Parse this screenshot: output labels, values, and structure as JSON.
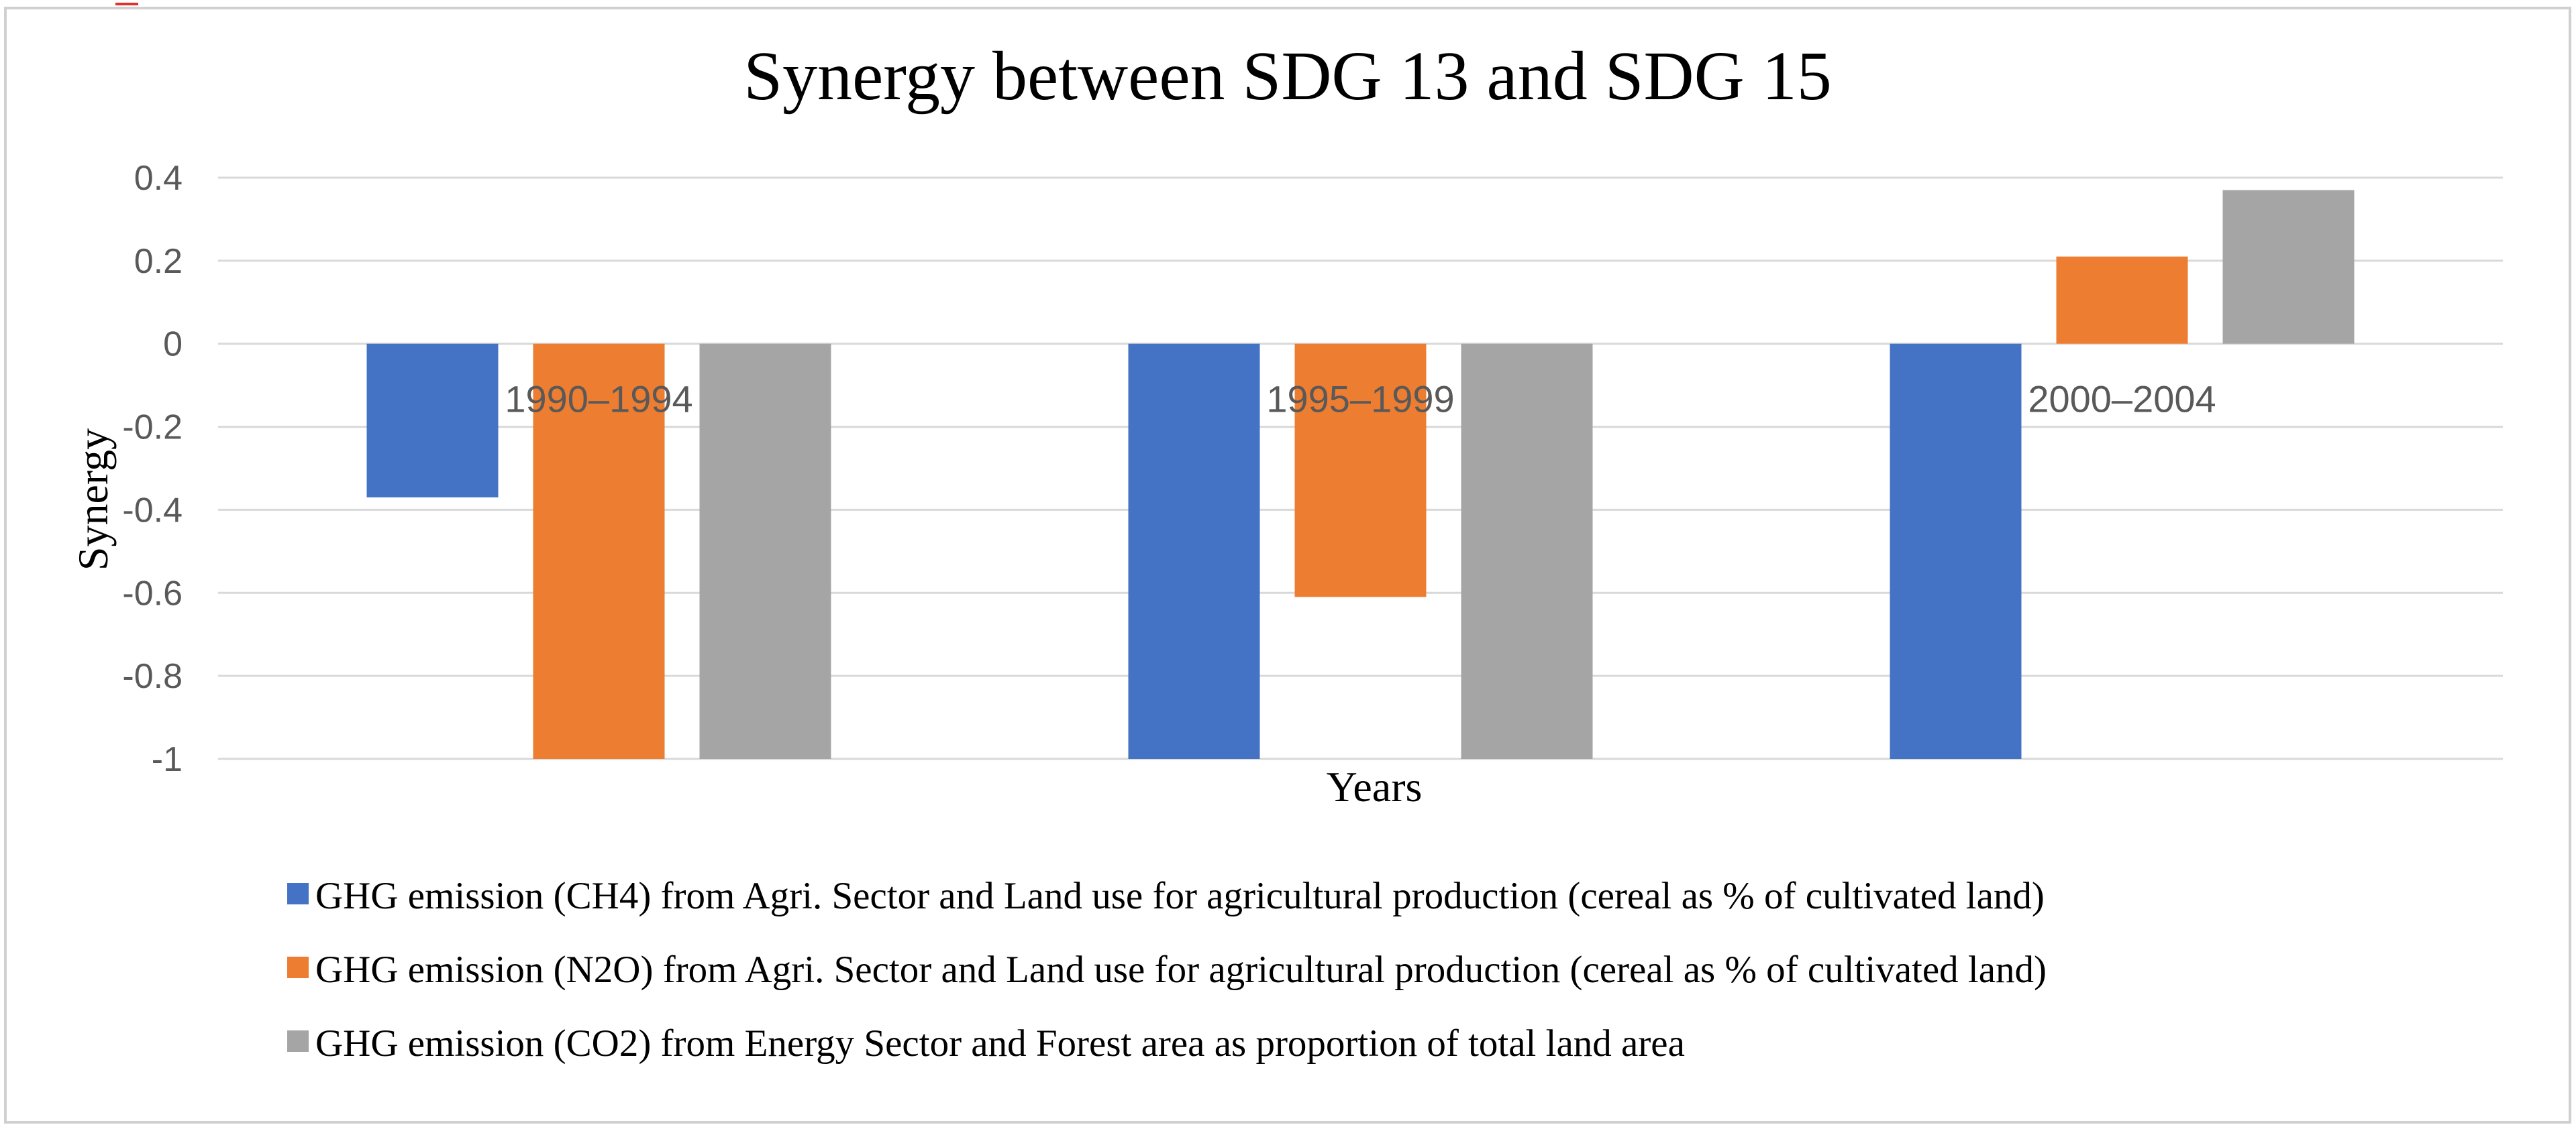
{
  "chart_data": {
    "type": "bar",
    "title": "Synergy between SDG 13 and SDG 15",
    "xlabel": "Years",
    "ylabel": "Synergy",
    "ylim": [
      -1,
      0.4
    ],
    "yticks": [
      0.4,
      0.2,
      0,
      -0.2,
      -0.4,
      -0.6,
      -0.8,
      -1
    ],
    "ytick_labels": [
      "0.4",
      "0.2",
      "0",
      "-0.2",
      "-0.4",
      "-0.6",
      "-0.8",
      "-1"
    ],
    "grid": true,
    "legend_position": "bottom",
    "categories": [
      "1990–1994",
      "1995–1999",
      "2000–2004"
    ],
    "series": [
      {
        "name": "GHG emission (CH4) from Agri. Sector and Land use for agricultural production (cereal as % of cultivated land)",
        "color": "#4472C4",
        "values": [
          -0.37,
          -1,
          -1
        ]
      },
      {
        "name": "GHG emission (N2O) from Agri. Sector and Land use for agricultural production (cereal as % of cultivated land)",
        "color": "#ED7D31",
        "values": [
          -1,
          -0.61,
          0.21
        ]
      },
      {
        "name": "GHG emission (CO2) from Energy Sector and Forest area as proportion of total land area",
        "color": "#A5A5A5",
        "values": [
          -1,
          -1,
          0.37
        ]
      }
    ]
  }
}
